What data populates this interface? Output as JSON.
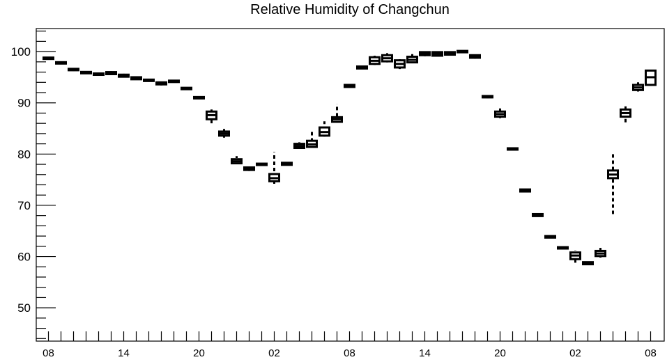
{
  "chart_data": {
    "type": "box",
    "title": "Relative Humidity of Changchun",
    "xlabel": "",
    "ylabel": "",
    "ylim": [
      43.5,
      104.5
    ],
    "y_ticks": [
      50,
      60,
      70,
      80,
      90,
      100
    ],
    "x_tick_labels": [
      "08",
      "14",
      "20",
      "02",
      "08",
      "14",
      "20",
      "02",
      "08"
    ],
    "grid": false,
    "legend": "none",
    "color": "#000000",
    "series": [
      {
        "boxes": [
          {
            "x": 0,
            "whislo": 98.4,
            "q1": 98.5,
            "med": 98.6,
            "q3": 98.7,
            "whishi": 98.8
          },
          {
            "x": 1,
            "whislo": 97.5,
            "q1": 97.6,
            "med": 97.7,
            "q3": 97.8,
            "whishi": 97.9
          },
          {
            "x": 2,
            "whislo": 96.2,
            "q1": 96.3,
            "med": 96.4,
            "q3": 96.5,
            "whishi": 96.6
          },
          {
            "x": 3,
            "whislo": 95.6,
            "q1": 95.7,
            "med": 95.8,
            "q3": 95.9,
            "whishi": 96.0
          },
          {
            "x": 4,
            "whislo": 95.3,
            "q1": 95.4,
            "med": 95.5,
            "q3": 95.6,
            "whishi": 95.7
          },
          {
            "x": 5,
            "whislo": 95.5,
            "q1": 95.6,
            "med": 95.8,
            "q3": 96.0,
            "whishi": 96.2
          },
          {
            "x": 6,
            "whislo": 95.0,
            "q1": 95.1,
            "med": 95.3,
            "q3": 95.5,
            "whishi": 95.7
          },
          {
            "x": 7,
            "whislo": 94.5,
            "q1": 94.6,
            "med": 94.8,
            "q3": 95.0,
            "whishi": 95.4
          },
          {
            "x": 8,
            "whislo": 94.1,
            "q1": 94.2,
            "med": 94.3,
            "q3": 94.4,
            "whishi": 94.5
          },
          {
            "x": 9,
            "whislo": 93.4,
            "q1": 93.6,
            "med": 93.8,
            "q3": 94.0,
            "whishi": 94.3
          },
          {
            "x": 10,
            "whislo": 93.9,
            "q1": 94.0,
            "med": 94.1,
            "q3": 94.2,
            "whishi": 94.3
          },
          {
            "x": 11,
            "whislo": 92.5,
            "q1": 92.6,
            "med": 92.7,
            "q3": 92.8,
            "whishi": 92.9
          },
          {
            "x": 12,
            "whislo": 90.7,
            "q1": 90.8,
            "med": 90.9,
            "q3": 91.0,
            "whishi": 91.1
          },
          {
            "x": 13,
            "whislo": 86.0,
            "q1": 86.8,
            "med": 87.6,
            "q3": 88.3,
            "whishi": 88.7
          },
          {
            "x": 14,
            "whislo": 83.2,
            "q1": 83.6,
            "med": 84.0,
            "q3": 84.4,
            "whishi": 84.9
          },
          {
            "x": 15,
            "whislo": 78.0,
            "q1": 78.2,
            "med": 78.6,
            "q3": 79.0,
            "whishi": 79.6
          },
          {
            "x": 16,
            "whislo": 76.7,
            "q1": 76.9,
            "med": 77.1,
            "q3": 77.4,
            "whishi": 77.7
          },
          {
            "x": 17,
            "whislo": 77.7,
            "q1": 77.8,
            "med": 77.9,
            "q3": 78.0,
            "whishi": 78.1
          },
          {
            "x": 18,
            "whislo": 74.2,
            "q1": 74.7,
            "med": 75.3,
            "q3": 76.1,
            "whishi": 80.4
          },
          {
            "x": 19,
            "whislo": 77.8,
            "q1": 77.9,
            "med": 78.1,
            "q3": 78.3,
            "whishi": 78.4
          },
          {
            "x": 20,
            "whislo": 81.0,
            "q1": 81.2,
            "med": 81.6,
            "q3": 82.0,
            "whishi": 82.3
          },
          {
            "x": 21,
            "whislo": 81.2,
            "q1": 81.4,
            "med": 81.9,
            "q3": 82.6,
            "whishi": 84.5
          },
          {
            "x": 22,
            "whislo": 83.4,
            "q1": 83.6,
            "med": 84.3,
            "q3": 85.2,
            "whishi": 86.4
          },
          {
            "x": 23,
            "whislo": 86.1,
            "q1": 86.3,
            "med": 86.8,
            "q3": 87.2,
            "whishi": 89.8
          },
          {
            "x": 24,
            "whislo": 93.0,
            "q1": 93.1,
            "med": 93.3,
            "q3": 93.5,
            "whishi": 94.0
          },
          {
            "x": 25,
            "whislo": 96.6,
            "q1": 96.7,
            "med": 96.9,
            "q3": 97.1,
            "whishi": 97.2
          },
          {
            "x": 26,
            "whislo": 97.4,
            "q1": 97.6,
            "med": 98.2,
            "q3": 98.9,
            "whishi": 99.2
          },
          {
            "x": 27,
            "whislo": 97.9,
            "q1": 98.1,
            "med": 98.7,
            "q3": 99.3,
            "whishi": 99.7
          },
          {
            "x": 28,
            "whislo": 96.6,
            "q1": 96.9,
            "med": 97.6,
            "q3": 98.3,
            "whishi": 98.8
          },
          {
            "x": 29,
            "whislo": 97.7,
            "q1": 97.9,
            "med": 98.4,
            "q3": 99.0,
            "whishi": 99.5
          },
          {
            "x": 30,
            "whislo": 99.1,
            "q1": 99.3,
            "med": 99.6,
            "q3": 99.9,
            "whishi": 100.0
          },
          {
            "x": 31,
            "whislo": 99.0,
            "q1": 99.2,
            "med": 99.6,
            "q3": 99.9,
            "whishi": 100.0
          },
          {
            "x": 32,
            "whislo": 99.2,
            "q1": 99.4,
            "med": 99.7,
            "q3": 99.9,
            "whishi": 100.0
          },
          {
            "x": 33,
            "whislo": 99.9,
            "q1": 99.9,
            "med": 100.0,
            "q3": 100.0,
            "whishi": 100.0
          },
          {
            "x": 34,
            "whislo": 98.6,
            "q1": 98.8,
            "med": 99.1,
            "q3": 99.3,
            "whishi": 99.5
          },
          {
            "x": 35,
            "whislo": 90.9,
            "q1": 91.0,
            "med": 91.1,
            "q3": 91.2,
            "whishi": 91.3
          },
          {
            "x": 36,
            "whislo": 87.0,
            "q1": 87.3,
            "med": 87.8,
            "q3": 88.3,
            "whishi": 89.0
          },
          {
            "x": 37,
            "whislo": 80.7,
            "q1": 80.8,
            "med": 80.9,
            "q3": 81.0,
            "whishi": 81.1
          },
          {
            "x": 38,
            "whislo": 72.6,
            "q1": 72.7,
            "med": 72.9,
            "q3": 73.1,
            "whishi": 73.2
          },
          {
            "x": 39,
            "whislo": 67.8,
            "q1": 67.9,
            "med": 68.1,
            "q3": 68.3,
            "whishi": 68.4
          },
          {
            "x": 40,
            "whislo": 63.6,
            "q1": 63.7,
            "med": 63.9,
            "q3": 64.0,
            "whishi": 64.1
          },
          {
            "x": 41,
            "whislo": 61.4,
            "q1": 61.5,
            "med": 61.6,
            "q3": 61.7,
            "whishi": 61.8
          },
          {
            "x": 42,
            "whislo": 58.8,
            "q1": 59.5,
            "med": 60.2,
            "q3": 60.8,
            "whishi": 61.3
          },
          {
            "x": 43,
            "whislo": 58.4,
            "q1": 58.5,
            "med": 58.7,
            "q3": 58.9,
            "whishi": 59.0
          },
          {
            "x": 44,
            "whislo": 59.8,
            "q1": 60.1,
            "med": 60.6,
            "q3": 61.1,
            "whishi": 61.7
          },
          {
            "x": 45,
            "whislo": 68.3,
            "q1": 75.3,
            "med": 76.0,
            "q3": 76.8,
            "whishi": 80.3
          },
          {
            "x": 46,
            "whislo": 86.2,
            "q1": 87.3,
            "med": 88.0,
            "q3": 88.7,
            "whishi": 89.4
          },
          {
            "x": 47,
            "whislo": 92.2,
            "q1": 92.5,
            "med": 93.0,
            "q3": 93.5,
            "whishi": 94.0
          },
          {
            "x": 48,
            "whislo": 93.3,
            "q1": 93.5,
            "med": 95.0,
            "q3": 96.3,
            "whishi": 96.7
          }
        ]
      }
    ]
  }
}
